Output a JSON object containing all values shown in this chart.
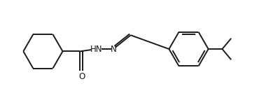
{
  "bg_color": "#ffffff",
  "line_color": "#1a1a1a",
  "text_color": "#1a1a1a",
  "hn_color": "#1a1a1a",
  "n_color": "#1a1a1a",
  "line_width": 1.4,
  "figsize": [
    3.87,
    1.5
  ],
  "dpi": 100,
  "xlim": [
    0,
    11
  ],
  "ylim": [
    -0.5,
    4.0
  ]
}
